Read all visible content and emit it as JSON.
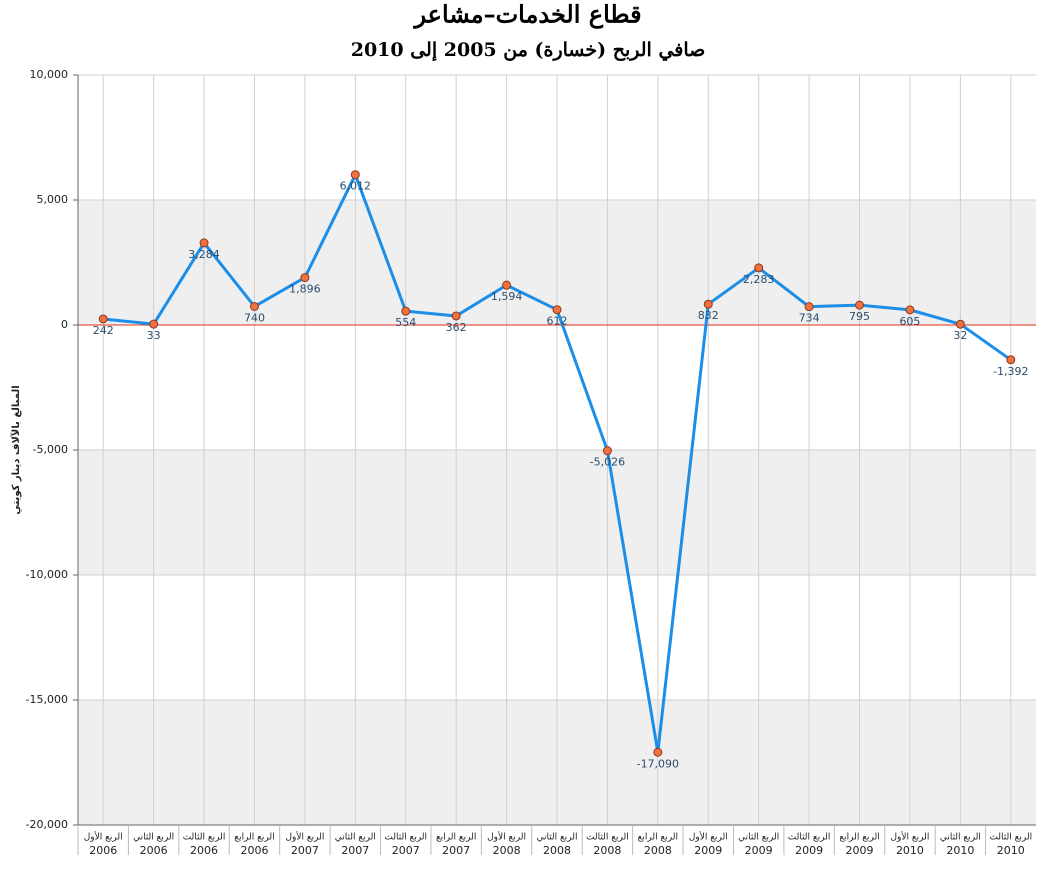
{
  "chart_data": {
    "type": "line",
    "title": "قطاع الخدمات–مشاعر",
    "subtitle": "صافي الربح (خسارة) من 2005 إلى 2010",
    "y_label": "المبالغ بالآلاف دينار كويتي",
    "categories": [
      {
        "quarter": "الربع الأول",
        "year": "2006"
      },
      {
        "quarter": "الربع الثاني",
        "year": "2006"
      },
      {
        "quarter": "الربع الثالث",
        "year": "2006"
      },
      {
        "quarter": "الربع الرابع",
        "year": "2006"
      },
      {
        "quarter": "الربع الأول",
        "year": "2007"
      },
      {
        "quarter": "الربع الثاني",
        "year": "2007"
      },
      {
        "quarter": "الربع الثالث",
        "year": "2007"
      },
      {
        "quarter": "الربع الرابع",
        "year": "2007"
      },
      {
        "quarter": "الربع الأول",
        "year": "2008"
      },
      {
        "quarter": "الربع الثاني",
        "year": "2008"
      },
      {
        "quarter": "الربع الثالث",
        "year": "2008"
      },
      {
        "quarter": "الربع الرابع",
        "year": "2008"
      },
      {
        "quarter": "الربع الأول",
        "year": "2009"
      },
      {
        "quarter": "الربع الثاني",
        "year": "2009"
      },
      {
        "quarter": "الربع الثالث",
        "year": "2009"
      },
      {
        "quarter": "الربع الرابع",
        "year": "2009"
      },
      {
        "quarter": "الربع الأول",
        "year": "2010"
      },
      {
        "quarter": "الربع الثاني",
        "year": "2010"
      },
      {
        "quarter": "الربع الثالث",
        "year": "2010"
      }
    ],
    "values": [
      242,
      33,
      3284,
      740,
      1896,
      6012,
      554,
      362,
      1594,
      612,
      -5026,
      -17090,
      832,
      2283,
      734,
      795,
      605,
      32,
      -1392
    ],
    "value_labels": [
      "242",
      "33",
      "3,284",
      "740",
      "1,896",
      "6,012",
      "554",
      "362",
      "1,594",
      "612",
      "-5,026",
      "-17,090",
      "832",
      "2,283",
      "734",
      "795",
      "605",
      "32",
      "-1,392"
    ],
    "color": "#1a8ee8",
    "marker_color": "#f07040",
    "ylim": [
      -20000,
      10000
    ],
    "yticks": [
      {
        "value": -20000,
        "label": "-20,000"
      },
      {
        "value": -15000,
        "label": "-15,000"
      },
      {
        "value": -10000,
        "label": "-10,000"
      },
      {
        "value": -5000,
        "label": "-5,000"
      },
      0,
      {
        "value": 5000,
        "label": "5,000"
      },
      {
        "value": 10000,
        "label": "10,000"
      }
    ],
    "grid": true
  }
}
